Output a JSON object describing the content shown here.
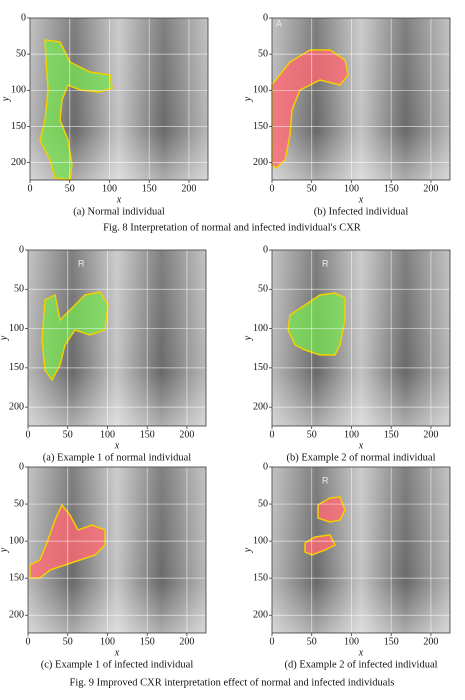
{
  "figures": [
    {
      "caption": "Fig. 8   Interpretation of normal and infected individual's CXR",
      "panels": [
        {
          "caption": "(a) Normal individual",
          "xlabel": "x",
          "ylabel": "y",
          "xlim": [
            0,
            224
          ],
          "ylim": [
            0,
            224
          ],
          "xticks": [
            0,
            50,
            100,
            150,
            200
          ],
          "yticks": [
            0,
            50,
            100,
            150,
            200
          ]
        },
        {
          "caption": "(b) Infected individual",
          "xlabel": "x",
          "ylabel": "y",
          "xlim": [
            0,
            224
          ],
          "ylim": [
            0,
            224
          ],
          "xticks": [
            0,
            50,
            100,
            150,
            200
          ],
          "yticks": [
            0,
            50,
            100,
            150,
            200
          ],
          "marker": "A"
        }
      ]
    },
    {
      "caption": "Fig. 9   Improved CXR interpretation effect of normal and infected individuals",
      "panels": [
        {
          "caption": "(a) Example 1 of normal individual",
          "xlabel": "x",
          "ylabel": "y",
          "xlim": [
            0,
            224
          ],
          "ylim": [
            0,
            224
          ],
          "xticks": [
            0,
            50,
            100,
            150,
            200
          ],
          "yticks": [
            0,
            50,
            100,
            150,
            200
          ],
          "marker": "R"
        },
        {
          "caption": "(b) Example 2 of normal individual",
          "xlabel": "x",
          "ylabel": "y",
          "xlim": [
            0,
            224
          ],
          "ylim": [
            0,
            224
          ],
          "xticks": [
            0,
            50,
            100,
            150,
            200
          ],
          "yticks": [
            0,
            50,
            100,
            150,
            200
          ],
          "marker": "R"
        },
        {
          "caption": "(c) Example 1 of infected individual",
          "xlabel": "x",
          "ylabel": "y",
          "xlim": [
            0,
            224
          ],
          "ylim": [
            0,
            224
          ],
          "xticks": [
            0,
            50,
            100,
            150,
            200
          ],
          "yticks": [
            0,
            50,
            100,
            150,
            200
          ]
        },
        {
          "caption": "(d) Example 2 of infected individual",
          "xlabel": "x",
          "ylabel": "y",
          "xlim": [
            0,
            224
          ],
          "ylim": [
            0,
            224
          ],
          "xticks": [
            0,
            50,
            100,
            150,
            200
          ],
          "yticks": [
            0,
            50,
            100,
            150,
            200
          ],
          "marker": "R"
        }
      ]
    }
  ]
}
